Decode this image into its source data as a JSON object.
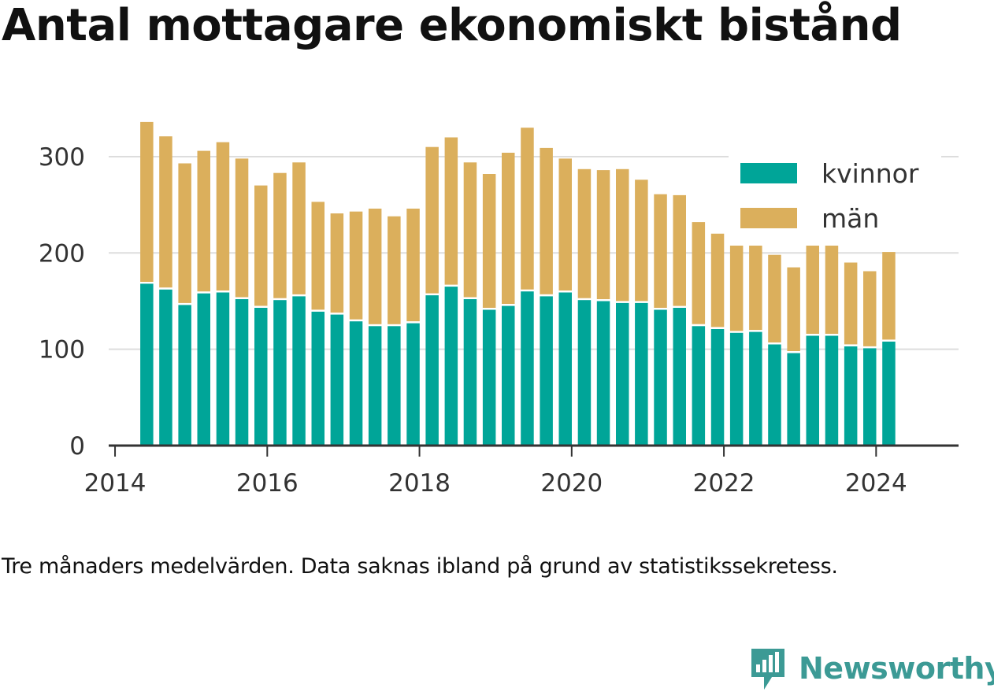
{
  "title": "Antal mottagare ekonomiskt bistånd",
  "note": "Tre månaders medelvärden. Data saknas ibland på grund av statistikssekretess.",
  "brand": {
    "name": "Newsworthy",
    "icon": "newsworthy-chart-bubble-icon",
    "color": "#3c9a95"
  },
  "chart_data": {
    "type": "bar",
    "stacked": true,
    "x_ticks": [
      "2014",
      "2016",
      "2018",
      "2020",
      "2022",
      "2024"
    ],
    "y_ticks": [
      0,
      100,
      200,
      300
    ],
    "ylim": [
      0,
      340
    ],
    "xlim": [
      "2013-12",
      "2025-02"
    ],
    "grid": true,
    "legend_position": "top-right",
    "dates": [
      "2014-05",
      "2014-08",
      "2014-11",
      "2015-02",
      "2015-05",
      "2015-08",
      "2015-11",
      "2016-02",
      "2016-05",
      "2016-08",
      "2016-11",
      "2017-02",
      "2017-05",
      "2017-08",
      "2017-11",
      "2018-02",
      "2018-05",
      "2018-08",
      "2018-11",
      "2019-02",
      "2019-05",
      "2019-08",
      "2019-11",
      "2020-02",
      "2020-05",
      "2020-08",
      "2020-11",
      "2021-02",
      "2021-05",
      "2021-08",
      "2021-11",
      "2022-02",
      "2022-05",
      "2022-08",
      "2022-11",
      "2023-02",
      "2023-05",
      "2023-08",
      "2023-11",
      "2024-02"
    ],
    "series": [
      {
        "name": "kvinnor",
        "color": "#00a598",
        "values": [
          168,
          162,
          146,
          158,
          159,
          152,
          143,
          151,
          155,
          139,
          136,
          129,
          124,
          124,
          127,
          156,
          165,
          152,
          141,
          145,
          160,
          155,
          159,
          151,
          150,
          148,
          148,
          141,
          143,
          124,
          121,
          117,
          118,
          105,
          96,
          114,
          114,
          103,
          101,
          108
        ]
      },
      {
        "name": "män",
        "color": "#dbaf5c",
        "values": [
          168,
          159,
          147,
          148,
          156,
          146,
          127,
          132,
          139,
          114,
          105,
          114,
          122,
          114,
          119,
          154,
          155,
          142,
          141,
          159,
          170,
          154,
          139,
          136,
          136,
          139,
          128,
          120,
          117,
          108,
          99,
          106,
          106,
          93,
          89,
          101,
          95,
          87,
          80,
          93
        ]
      }
    ]
  }
}
